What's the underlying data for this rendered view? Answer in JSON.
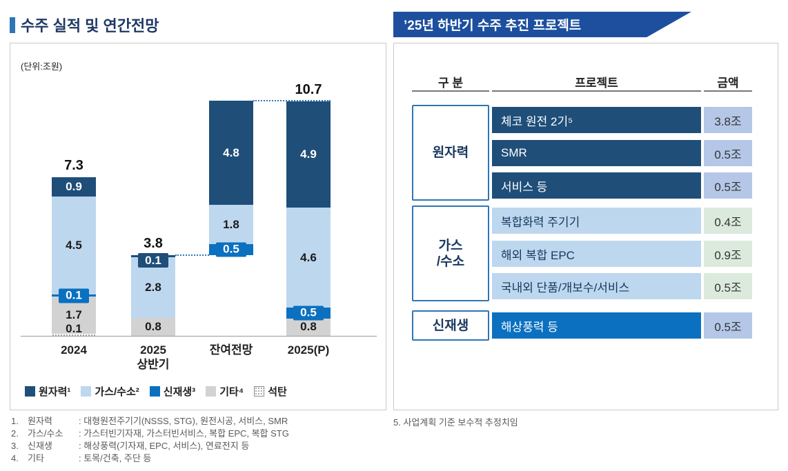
{
  "colors": {
    "title_text": "#1f3864",
    "title_marker": "#2e75b6",
    "banner_bg": "#1d4f9e",
    "connector_line": "#2e75b6",
    "navy": "#1f4e79",
    "light_blue": "#bdd7ee",
    "bright_blue": "#0b70c0",
    "gray": "#d2d2d2"
  },
  "left_panel": {
    "title": "수주 실적 및 연간전망",
    "unit_label": "(단위:조원)",
    "footnotes": [
      {
        "num": "1.",
        "term": "원자력",
        "desc": ": 대형원전주기기(NSSS, STG), 원전시공, 서비스, SMR"
      },
      {
        "num": "2.",
        "term": "가스/수소",
        "desc": ": 가스터빈기자재, 가스터빈서비스, 복합 EPC, 복합 STG"
      },
      {
        "num": "3.",
        "term": "신재생",
        "desc": ": 해상풍력(기자재, EPC, 서비스), 연료전지 등"
      },
      {
        "num": "4.",
        "term": "기타",
        "desc": ": 토목/건축, 주단 등"
      }
    ]
  },
  "chart_data": {
    "type": "bar",
    "stacked": true,
    "title": "수주 실적 및 연간전망",
    "unit": "조원",
    "ylim": [
      0,
      11.5
    ],
    "categories": [
      "2024",
      "2025 상반기",
      "잔여전망",
      "2025(P)"
    ],
    "legend": [
      {
        "label": "원자력¹",
        "color": "#1f4e79",
        "swatch": "solid"
      },
      {
        "label": "가스/수소²",
        "color": "#bdd7ee",
        "swatch": "solid"
      },
      {
        "label": "신재생³",
        "color": "#0b70c0",
        "swatch": "solid"
      },
      {
        "label": "기타⁴",
        "color": "#d2d2d2",
        "swatch": "solid"
      },
      {
        "label": "석탄",
        "color": "#ffffff",
        "swatch": "hatch"
      }
    ],
    "bars": [
      {
        "category": "2024",
        "category_lines": [
          "2024"
        ],
        "total_label": "7.3",
        "segments": [
          {
            "series": "석탄",
            "value": 0.1,
            "label": "0.1",
            "color": "hatch",
            "label_style": "dark-outside"
          },
          {
            "series": "기타",
            "value": 1.7,
            "label": "1.7",
            "color": "#d2d2d2",
            "label_style": "dark"
          },
          {
            "series": "신재생",
            "value": 0.1,
            "label": "0.1",
            "color": "#0b70c0",
            "label_style": "chip-white"
          },
          {
            "series": "가스/수소",
            "value": 4.5,
            "label": "4.5",
            "color": "#bdd7ee",
            "label_style": "dark"
          },
          {
            "series": "원자력",
            "value": 0.9,
            "label": "0.9",
            "color": "#1f4e79",
            "label_style": "white"
          }
        ]
      },
      {
        "category": "2025 상반기",
        "category_lines": [
          "2025",
          "상반기"
        ],
        "total_label": "3.8",
        "segments": [
          {
            "series": "기타",
            "value": 0.8,
            "label": "0.8",
            "color": "#d2d2d2",
            "label_style": "dark"
          },
          {
            "series": "가스/수소",
            "value": 2.8,
            "label": "2.8",
            "color": "#bdd7ee",
            "label_style": "dark"
          },
          {
            "series": "원자력",
            "value": 0.1,
            "label": "0.1",
            "color": "#1f4e79",
            "label_style": "chip-white-top"
          }
        ]
      },
      {
        "category": "잔여전망",
        "category_lines": [
          "잔여전망"
        ],
        "total_label": "",
        "base_on": "2025 상반기",
        "segments": [
          {
            "series": "신재생",
            "value": 0.5,
            "label": "0.5",
            "color": "#0b70c0",
            "label_style": "chip-white"
          },
          {
            "series": "가스/수소",
            "value": 1.8,
            "label": "1.8",
            "color": "#bdd7ee",
            "label_style": "dark"
          },
          {
            "series": "원자력",
            "value": 4.8,
            "label": "4.8",
            "color": "#1f4e79",
            "label_style": "white"
          }
        ]
      },
      {
        "category": "2025(P)",
        "category_lines": [
          "2025(P)"
        ],
        "total_label": "10.7",
        "segments": [
          {
            "series": "기타",
            "value": 0.8,
            "label": "0.8",
            "color": "#d2d2d2",
            "label_style": "dark"
          },
          {
            "series": "신재생",
            "value": 0.5,
            "label": "0.5",
            "color": "#0b70c0",
            "label_style": "chip-white"
          },
          {
            "series": "가스/수소",
            "value": 4.6,
            "label": "4.6",
            "color": "#bdd7ee",
            "label_style": "dark"
          },
          {
            "series": "원자력",
            "value": 4.9,
            "label": "4.9",
            "color": "#1f4e79",
            "label_style": "white"
          }
        ]
      }
    ],
    "connectors": [
      {
        "from": "2025 상반기",
        "to": "잔여전망",
        "style": "dotted",
        "span": "gap"
      },
      {
        "from": "잔여전망",
        "to": "2025(P)",
        "style": "dotted",
        "span": "full"
      }
    ]
  },
  "right_panel": {
    "banner_title": "’25년 하반기 수주 추진 프로젝트",
    "table": {
      "headers": [
        "구 분",
        "프로젝트",
        "금액"
      ],
      "styles": {
        "navy": {
          "project_bg": "#1f4e79",
          "project_color": "#ffffff",
          "amount_bg": "#b4c7e7"
        },
        "lightblue": {
          "project_bg": "#bdd7ee",
          "project_color": "#17375e",
          "amount_bg": "#dbeadd"
        },
        "blue": {
          "project_bg": "#0b70c0",
          "project_color": "#ffffff",
          "amount_bg": "#b4c7e7"
        }
      },
      "groups": [
        {
          "category": "원자력",
          "category_lines": [
            "원자력"
          ],
          "style": "navy",
          "rows": [
            {
              "project": "체코 원전 2기⁵",
              "amount": "3.8조"
            },
            {
              "project": "SMR",
              "amount": "0.5조"
            },
            {
              "project": "서비스 등",
              "amount": "0.5조"
            }
          ]
        },
        {
          "category": "가스/수소",
          "category_lines": [
            "가스",
            "/수소"
          ],
          "style": "lightblue",
          "rows": [
            {
              "project": "복합화력 주기기",
              "amount": "0.4조"
            },
            {
              "project": "해외 복합 EPC",
              "amount": "0.9조"
            },
            {
              "project": "국내외 단품/개보수/서비스",
              "amount": "0.5조"
            }
          ]
        },
        {
          "category": "신재생",
          "category_lines": [
            "신재생"
          ],
          "style": "blue",
          "rows": [
            {
              "project": "해상풍력 등",
              "amount": "0.5조"
            }
          ]
        }
      ]
    },
    "footnote": "5. 사업계획 기준 보수적 추정치임"
  }
}
